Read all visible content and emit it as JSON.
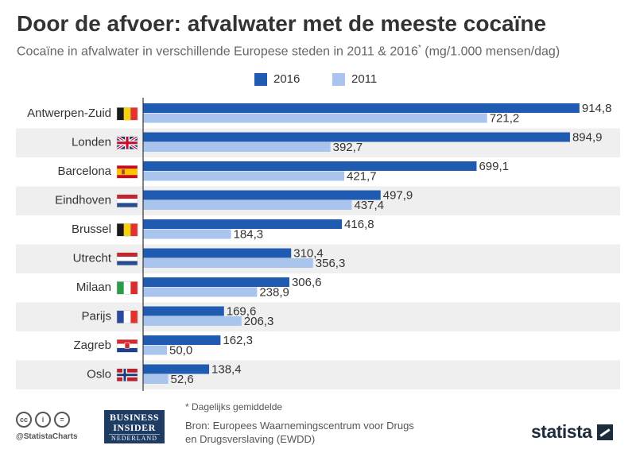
{
  "title": "Door de afvoer: afvalwater met de meeste cocaïne",
  "subtitle": "Cocaïne in afvalwater in verschillende Europese steden in 2011 & 2016",
  "subtitle_mark": "*",
  "subtitle_unit": " (mg/1.000 mensen/dag)",
  "footnote": "* Dagelijks gemiddelde",
  "source": "Bron: Europees Waarnemingscentrum voor Drugs en Drugsverslaving (EWDD)",
  "branding": {
    "handle": "@StatistaCharts",
    "bi_line1": "BUSINESS",
    "bi_line2": "INSIDER",
    "bi_line3": "NEDERLAND",
    "statista": "statista"
  },
  "colors": {
    "series_2016": "#1f5bb0",
    "series_2011": "#a9c5ee",
    "band": "#efefef",
    "axis": "#333333"
  },
  "chart_data": {
    "type": "bar",
    "orientation": "horizontal",
    "categories": [
      "Antwerpen-Zuid",
      "Londen",
      "Barcelona",
      "Eindhoven",
      "Brussel",
      "Utrecht",
      "Milaan",
      "Parijs",
      "Zagreb",
      "Oslo"
    ],
    "flags": [
      "belgium-flag-icon",
      "uk-flag-icon",
      "spain-flag-icon",
      "netherlands-flag-icon",
      "belgium-flag-icon",
      "netherlands-flag-icon",
      "italy-flag-icon",
      "france-flag-icon",
      "croatia-flag-icon",
      "norway-flag-icon"
    ],
    "series": [
      {
        "name": "2016",
        "values": [
          914.8,
          894.9,
          699.1,
          497.9,
          416.8,
          310.4,
          306.6,
          169.6,
          162.3,
          138.4
        ],
        "labels": [
          "914,8",
          "894,9",
          "699,1",
          "497,9",
          "416,8",
          "310,4",
          "306,6",
          "169,6",
          "162,3",
          "138,4"
        ]
      },
      {
        "name": "2011",
        "values": [
          721.2,
          392.7,
          421.7,
          437.4,
          184.3,
          356.3,
          238.9,
          206.3,
          50.0,
          52.6
        ],
        "labels": [
          "721,2",
          "392,7",
          "421,7",
          "437,4",
          "184,3",
          "356,3",
          "238,9",
          "206,3",
          "50,0",
          "52,6"
        ]
      }
    ],
    "xlim": [
      0,
      1000
    ],
    "legend": "top-center",
    "grid": false
  }
}
